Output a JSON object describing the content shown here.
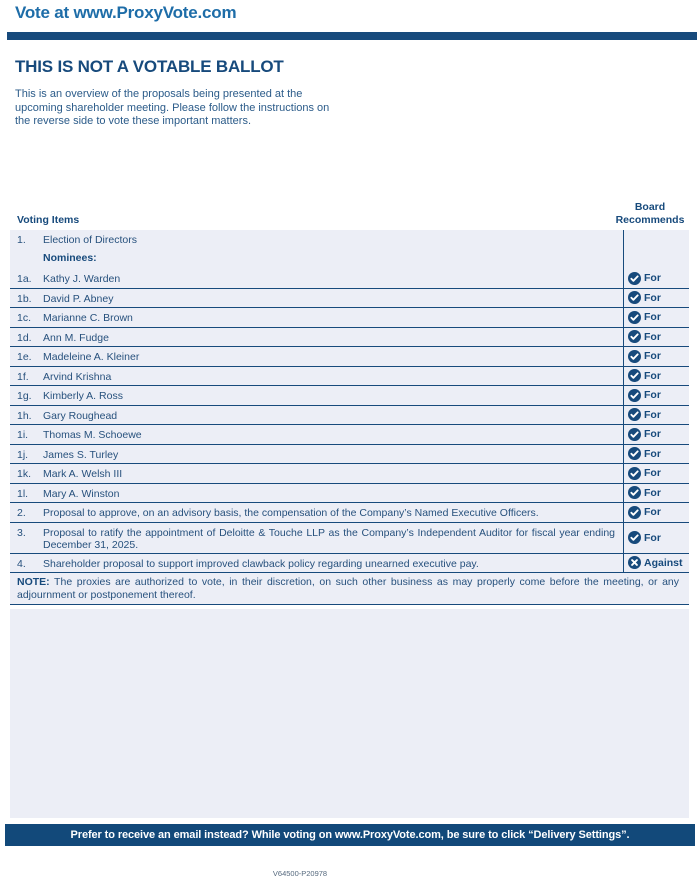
{
  "page": {
    "site_title": "Vote at www.ProxyVote.com",
    "heading": "THIS IS NOT A VOTABLE BALLOT",
    "intro": "This is an overview of the proposals being presented at the\nupcoming shareholder meeting. Please follow the instructions on\nthe reverse side to vote these important matters.",
    "footer_banner": "Prefer to receive an email instead? While voting on www.ProxyVote.com, be sure to click “Delivery Settings”.",
    "form_code": "V64500-P20978"
  },
  "colors": {
    "navy": "#174a7c",
    "title_blue": "#1e6da8",
    "row_background": "#eceef6",
    "footer_background": "#12497a"
  },
  "table": {
    "header_left": "Voting Items",
    "header_right": "Board\nRecommends",
    "rows": [
      {
        "kind": "group",
        "num": "1.",
        "text": "Election of Directors",
        "subtext": "Nominees:"
      },
      {
        "kind": "item",
        "num": "1a.",
        "text": "Kathy J. Warden",
        "rec": {
          "label": "For",
          "icon": "check-circle-icon"
        }
      },
      {
        "kind": "item",
        "num": "1b.",
        "text": "David P. Abney",
        "rec": {
          "label": "For",
          "icon": "check-circle-icon"
        }
      },
      {
        "kind": "item",
        "num": "1c.",
        "text": "Marianne C. Brown",
        "rec": {
          "label": "For",
          "icon": "check-circle-icon"
        }
      },
      {
        "kind": "item",
        "num": "1d.",
        "text": "Ann M. Fudge",
        "rec": {
          "label": "For",
          "icon": "check-circle-icon"
        }
      },
      {
        "kind": "item",
        "num": "1e.",
        "text": "Madeleine A. Kleiner",
        "rec": {
          "label": "For",
          "icon": "check-circle-icon"
        }
      },
      {
        "kind": "item",
        "num": "1f.",
        "text": "Arvind Krishna",
        "rec": {
          "label": "For",
          "icon": "check-circle-icon"
        }
      },
      {
        "kind": "item",
        "num": "1g.",
        "text": "Kimberly A. Ross",
        "rec": {
          "label": "For",
          "icon": "check-circle-icon"
        }
      },
      {
        "kind": "item",
        "num": "1h.",
        "text": "Gary Roughead",
        "rec": {
          "label": "For",
          "icon": "check-circle-icon"
        }
      },
      {
        "kind": "item",
        "num": "1i.",
        "text": "Thomas M. Schoewe",
        "rec": {
          "label": "For",
          "icon": "check-circle-icon"
        }
      },
      {
        "kind": "item",
        "num": "1j.",
        "text": "James S. Turley",
        "rec": {
          "label": "For",
          "icon": "check-circle-icon"
        }
      },
      {
        "kind": "item",
        "num": "1k.",
        "text": "Mark A. Welsh III",
        "rec": {
          "label": "For",
          "icon": "check-circle-icon"
        }
      },
      {
        "kind": "item",
        "num": "1l.",
        "text": "Mary A. Winston",
        "rec": {
          "label": "For",
          "icon": "check-circle-icon"
        }
      },
      {
        "kind": "item",
        "num": "2.",
        "text": "Proposal to approve, on an advisory basis, the compensation of the Company’s Named Executive Officers.",
        "rec": {
          "label": "For",
          "icon": "check-circle-icon"
        }
      },
      {
        "kind": "item",
        "num": "3.",
        "text": "Proposal to ratify the appointment of Deloitte & Touche LLP as the Company’s Independent Auditor for fiscal year ending December 31, 2025.",
        "rec": {
          "label": "For",
          "icon": "check-circle-icon"
        }
      },
      {
        "kind": "item",
        "num": "4.",
        "text": "Shareholder proposal to support improved clawback policy regarding unearned executive pay.",
        "rec": {
          "label": "Against",
          "icon": "x-circle-icon"
        }
      },
      {
        "kind": "note",
        "label": "NOTE:",
        "text": "The proxies are authorized to vote, in their discretion, on such other business as may properly come before the meeting, or any adjournment or postponement thereof."
      }
    ]
  }
}
